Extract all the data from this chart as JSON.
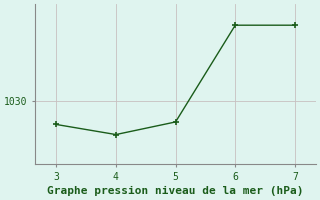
{
  "x": [
    3,
    4,
    5,
    6,
    7
  ],
  "y": [
    1027.2,
    1026.0,
    1027.5,
    1039.0,
    1039.0
  ],
  "line_color": "#1a5c1a",
  "marker": "+",
  "marker_size": 5,
  "marker_lw": 1.2,
  "line_width": 1.0,
  "bg_color": "#dff4ef",
  "grid_color": "#c8c0c0",
  "grid_lw": 0.6,
  "spine_color": "#888888",
  "spine_lw": 0.8,
  "title": "Graphe pression niveau de la mer (hPa)",
  "title_fontsize": 8,
  "ytick_labels": [
    "1030"
  ],
  "ytick_values": [
    1030
  ],
  "xtick_values": [
    3,
    4,
    5,
    6,
    7
  ],
  "xlim": [
    2.65,
    7.35
  ],
  "ylim": [
    1022.5,
    1041.5
  ],
  "tick_color": "#1a5c1a",
  "tick_fontsize": 7
}
